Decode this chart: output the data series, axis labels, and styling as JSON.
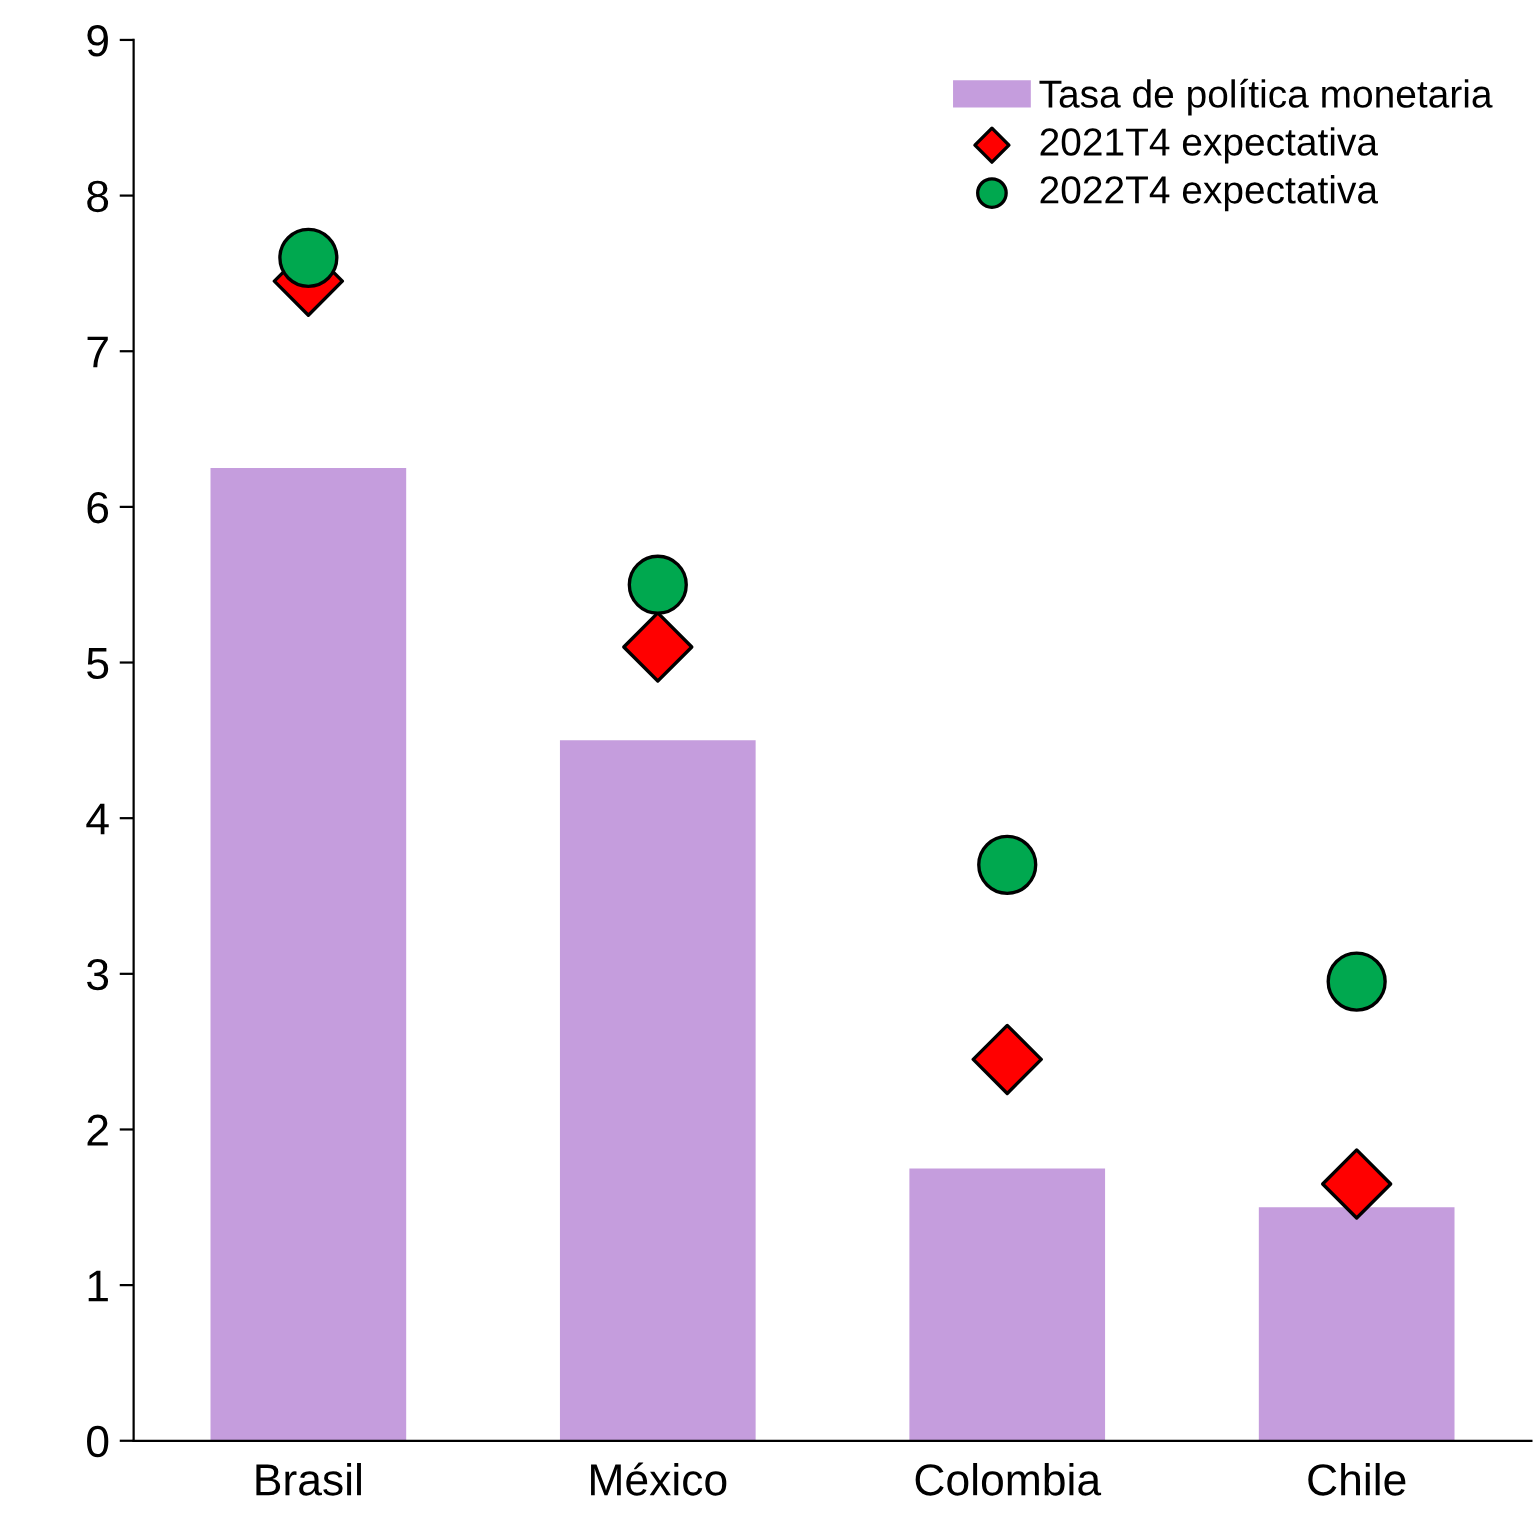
{
  "chart_data": {
    "type": "bar",
    "categories": [
      "Brasil",
      "México",
      "Colombia",
      "Chile"
    ],
    "series": [
      {
        "name": "Tasa de política monetaria",
        "color": "#c59ddd",
        "values": [
          6.25,
          4.5,
          1.75,
          1.5
        ]
      },
      {
        "name": "2021T4 expectativa",
        "type": "scatter",
        "marker": "diamond",
        "color": "#ff0000",
        "values": [
          7.45,
          5.1,
          2.45,
          1.65
        ]
      },
      {
        "name": "2022T4 expectativa",
        "type": "scatter",
        "marker": "circle",
        "color": "#00a84f",
        "values": [
          7.6,
          5.5,
          3.7,
          2.95
        ]
      }
    ],
    "ylim": [
      0,
      9
    ],
    "yticks": [
      0,
      1,
      2,
      3,
      4,
      5,
      6,
      7,
      8,
      9
    ],
    "grid": false,
    "legend": "top right"
  }
}
